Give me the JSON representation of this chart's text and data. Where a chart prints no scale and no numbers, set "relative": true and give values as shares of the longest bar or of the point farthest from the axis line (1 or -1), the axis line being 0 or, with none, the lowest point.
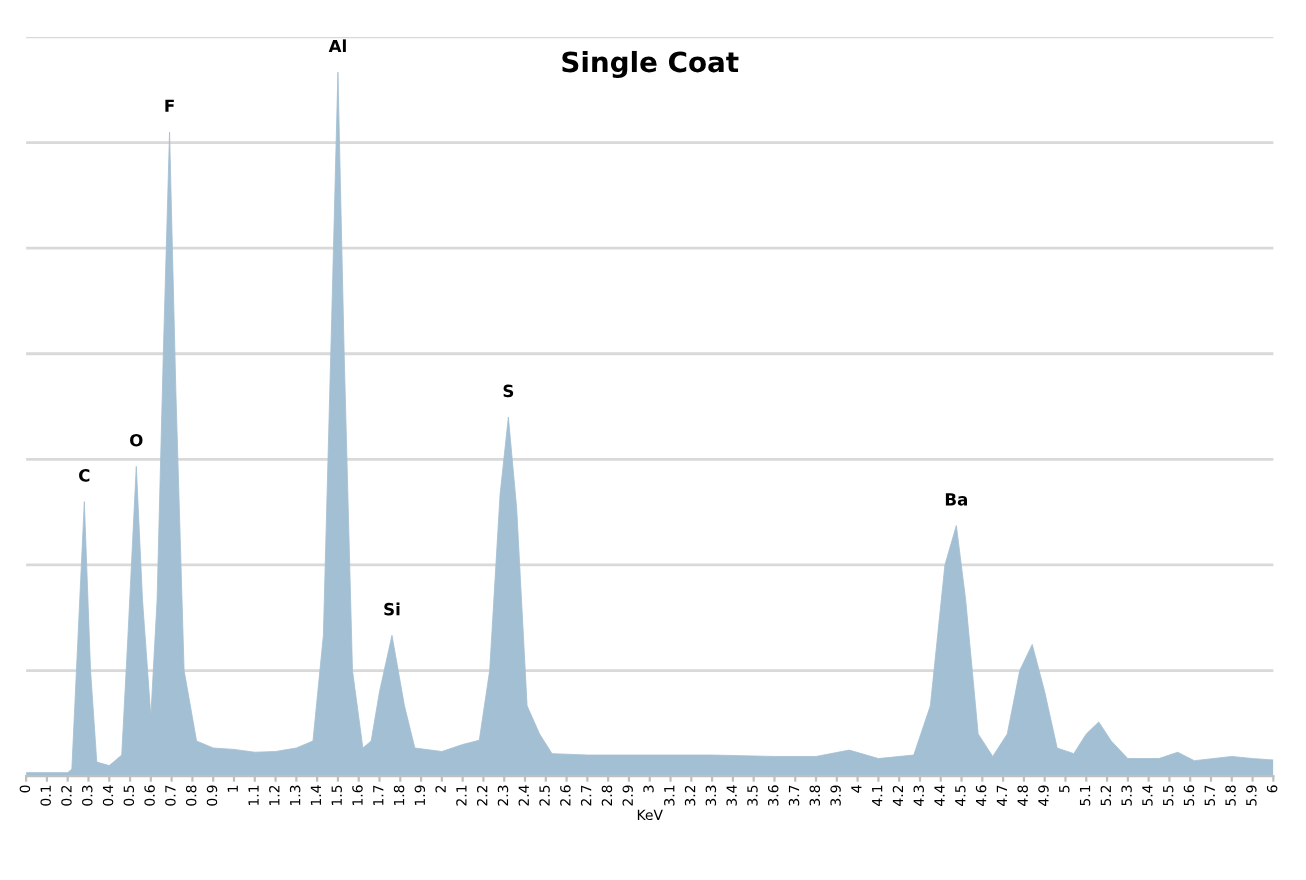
{
  "chart_data": {
    "type": "area",
    "title": "Single Coat",
    "xlabel": "KeV",
    "relative": true,
    "grid": "y",
    "xlim": [
      0,
      6
    ],
    "xticks": [
      0,
      0.1,
      0.2,
      0.3,
      0.4,
      0.5,
      0.6,
      0.7,
      0.8,
      0.9,
      1,
      1.1,
      1.2,
      1.3,
      1.4,
      1.5,
      1.6,
      1.7,
      1.8,
      1.9,
      2,
      2.1,
      2.2,
      2.3,
      2.4,
      2.5,
      2.6,
      2.7,
      2.8,
      2.9,
      3,
      3.1,
      3.2,
      3.3,
      3.4,
      3.5,
      3.6,
      3.7,
      3.8,
      3.9,
      4,
      4.1,
      4.2,
      4.3,
      4.4,
      4.5,
      4.6,
      4.7,
      4.8,
      4.9,
      5,
      5.1,
      5.2,
      5.3,
      5.4,
      5.5,
      5.6,
      5.7,
      5.8,
      5.9,
      6
    ],
    "series": [
      {
        "color": "#a3bfd3",
        "x": [
          0,
          0.2,
          0.22,
          0.25,
          0.28,
          0.31,
          0.34,
          0.4,
          0.46,
          0.49,
          0.53,
          0.56,
          0.6,
          0.63,
          0.66,
          0.69,
          0.72,
          0.76,
          0.82,
          0.9,
          1.0,
          1.1,
          1.2,
          1.3,
          1.38,
          1.43,
          1.47,
          1.5,
          1.53,
          1.57,
          1.62,
          1.66,
          1.7,
          1.76,
          1.82,
          1.87,
          2.0,
          2.1,
          2.18,
          2.23,
          2.28,
          2.32,
          2.36,
          2.41,
          2.47,
          2.53,
          2.7,
          3.0,
          3.3,
          3.6,
          3.8,
          3.96,
          4.1,
          4.27,
          4.35,
          4.42,
          4.475,
          4.52,
          4.58,
          4.65,
          4.72,
          4.78,
          4.84,
          4.9,
          4.96,
          5.04,
          5.1,
          5.16,
          5.22,
          5.3,
          5.45,
          5.54,
          5.62,
          5.8,
          5.9,
          6.0
        ],
        "values": [
          0.005,
          0.005,
          0.01,
          0.2,
          0.39,
          0.15,
          0.02,
          0.015,
          0.03,
          0.2,
          0.44,
          0.25,
          0.085,
          0.25,
          0.6,
          0.915,
          0.55,
          0.15,
          0.05,
          0.04,
          0.038,
          0.034,
          0.035,
          0.04,
          0.05,
          0.2,
          0.65,
          1.0,
          0.6,
          0.15,
          0.04,
          0.05,
          0.12,
          0.2,
          0.1,
          0.04,
          0.035,
          0.045,
          0.051,
          0.15,
          0.4,
          0.51,
          0.38,
          0.1,
          0.06,
          0.032,
          0.03,
          0.03,
          0.03,
          0.028,
          0.028,
          0.037,
          0.025,
          0.03,
          0.1,
          0.3,
          0.356,
          0.25,
          0.06,
          0.028,
          0.06,
          0.15,
          0.187,
          0.12,
          0.04,
          0.032,
          0.06,
          0.077,
          0.05,
          0.025,
          0.025,
          0.034,
          0.022,
          0.028,
          0.025,
          0.023
        ]
      }
    ],
    "annotations": [
      {
        "text": "C",
        "x": 0.28,
        "y": 0.39
      },
      {
        "text": "O",
        "x": 0.53,
        "y": 0.44
      },
      {
        "text": "F",
        "x": 0.69,
        "y": 0.915
      },
      {
        "text": "Al",
        "x": 1.5,
        "y": 1.0
      },
      {
        "text": "Si",
        "x": 1.76,
        "y": 0.2
      },
      {
        "text": "S",
        "x": 2.32,
        "y": 0.51
      },
      {
        "text": "Ba",
        "x": 4.475,
        "y": 0.356
      }
    ]
  }
}
